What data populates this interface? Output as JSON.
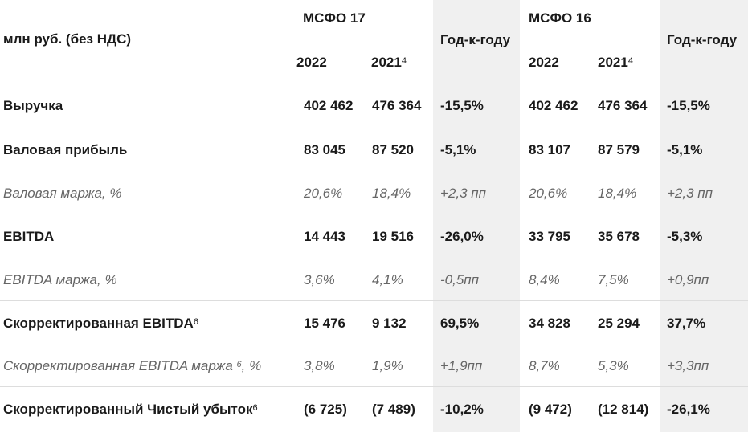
{
  "header": {
    "unit_label": "млн руб. (без НДС)",
    "group1": "МСФО 17",
    "group2": "МСФО 16",
    "yoy1": "Год-к-году",
    "yoy2": "Год-к-году",
    "year_a": "2022",
    "year_b": "2021",
    "year_b_sup": "4",
    "year_c": "2022",
    "year_d": "2021",
    "year_d_sup": "4"
  },
  "rows": [
    {
      "label": "Выручка",
      "sup": "",
      "v1": "402 462",
      "v2": "476 364",
      "y1": "-15,5%",
      "v3": "402 462",
      "v4": "476 364",
      "y2": "-15,5%"
    },
    {
      "label": "Валовая прибыль",
      "sup": "",
      "v1": "83 045",
      "v2": "87 520",
      "y1": "-5,1%",
      "v3": "83 107",
      "v4": "87 579",
      "y2": "-5,1%"
    },
    {
      "label": "Валовая маржа, %",
      "sup": "",
      "v1": "20,6%",
      "v2": "18,4%",
      "y1": "+2,3 пп",
      "v3": "20,6%",
      "v4": "18,4%",
      "y2": "+2,3 пп"
    },
    {
      "label": "EBITDA",
      "sup": "",
      "v1": "14 443",
      "v2": "19 516",
      "y1": "-26,0%",
      "v3": "33 795",
      "v4": "35 678",
      "y2": "-5,3%"
    },
    {
      "label": "EBITDA маржа, %",
      "sup": "",
      "v1": "3,6%",
      "v2": "4,1%",
      "y1": "-0,5пп",
      "v3": "8,4%",
      "v4": "7,5%",
      "y2": "+0,9пп"
    },
    {
      "label": "Скорректированная EBITDA",
      "sup": "6",
      "v1": "15 476",
      "v2": "9 132",
      "y1": "69,5%",
      "v3": "34 828",
      "v4": "25 294",
      "y2": "37,7%"
    },
    {
      "label": "Скорректированная EBITDA маржа ",
      "sup": "6",
      "label_tail": ", %",
      "v1": "3,8%",
      "v2": "1,9%",
      "y1": "+1,9пп",
      "v3": "8,7%",
      "v4": "5,3%",
      "y2": "+3,3пп"
    },
    {
      "label": "Скорректированный Чистый убыток",
      "sup": "6",
      "v1": "(6 725)",
      "v2": "(7 489)",
      "y1": "-10,2%",
      "v3": "(9 472)",
      "v4": "(12 814)",
      "y2": "-26,1%"
    }
  ]
}
